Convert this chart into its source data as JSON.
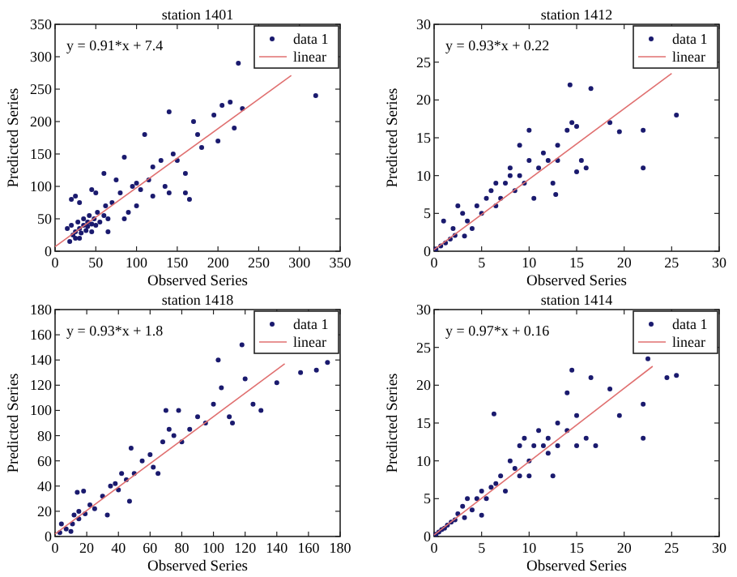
{
  "chart_data": [
    {
      "type": "scatter",
      "title": "station 1401",
      "xlabel": "Observed Series",
      "ylabel": "Predicted Series",
      "xlim": [
        0,
        350
      ],
      "ylim": [
        0,
        350
      ],
      "xticks": [
        0,
        50,
        100,
        150,
        200,
        250,
        300,
        350
      ],
      "yticks": [
        0,
        50,
        100,
        150,
        200,
        250,
        300,
        350
      ],
      "legend": "top right",
      "annotations": [
        "y = 0.91*x + 7.4"
      ],
      "series": [
        {
          "name": "data 1",
          "type": "scatter",
          "marker": "circle",
          "color": "#1a1a6e",
          "x": [
            15,
            20,
            22,
            25,
            28,
            30,
            32,
            35,
            35,
            38,
            40,
            40,
            42,
            45,
            45,
            48,
            50,
            52,
            55,
            30,
            25,
            18,
            60,
            62,
            65,
            70,
            20,
            25,
            30,
            45,
            50,
            60,
            65,
            75,
            80,
            85,
            90,
            95,
            100,
            105,
            110,
            115,
            120,
            130,
            135,
            140,
            140,
            145,
            150,
            160,
            160,
            165,
            170,
            175,
            180,
            195,
            200,
            205,
            215,
            220,
            225,
            230,
            320,
            100,
            85,
            120
          ],
          "values": [
            35,
            40,
            25,
            30,
            45,
            35,
            28,
            40,
            50,
            32,
            45,
            38,
            55,
            42,
            30,
            50,
            40,
            60,
            45,
            20,
            20,
            15,
            55,
            70,
            50,
            75,
            80,
            85,
            75,
            95,
            90,
            120,
            30,
            110,
            90,
            145,
            60,
            100,
            105,
            95,
            180,
            110,
            85,
            140,
            100,
            215,
            90,
            150,
            140,
            120,
            90,
            80,
            200,
            180,
            160,
            210,
            170,
            225,
            230,
            190,
            290,
            220,
            240,
            70,
            50,
            130
          ]
        },
        {
          "name": "linear",
          "type": "line",
          "marker": "none",
          "color": "#e07070",
          "x": [
            0,
            290
          ],
          "values": [
            7,
            271
          ]
        }
      ]
    },
    {
      "type": "scatter",
      "title": "station 1412",
      "xlabel": "Observed Series",
      "ylabel": "Predicted Series",
      "xlim": [
        0,
        30
      ],
      "ylim": [
        0,
        30
      ],
      "xticks": [
        0,
        5,
        10,
        15,
        20,
        25,
        30
      ],
      "yticks": [
        0,
        5,
        10,
        15,
        20,
        25,
        30
      ],
      "legend": "top right",
      "annotations": [
        "y = 0.93*x + 0.22"
      ],
      "series": [
        {
          "name": "data 1",
          "type": "scatter",
          "marker": "circle",
          "color": "#1a1a6e",
          "x": [
            0.2,
            0.7,
            1.2,
            1.7,
            2.2,
            1,
            2,
            2.5,
            3,
            3.5,
            3.2,
            4,
            4.5,
            5,
            5.5,
            6,
            6.5,
            6.5,
            7,
            7.5,
            8,
            8,
            8.5,
            9,
            9,
            9.5,
            10,
            10,
            10.5,
            11,
            11.5,
            12,
            12.5,
            12.8,
            13,
            13,
            14,
            14.3,
            14.5,
            15,
            15,
            15.5,
            16.5,
            16,
            18.5,
            19.5,
            22,
            22,
            25.5
          ],
          "values": [
            0.3,
            0.7,
            1.1,
            1.6,
            2.1,
            4,
            3,
            6,
            5,
            4,
            2,
            3,
            6,
            5,
            7,
            8,
            6,
            9,
            7,
            9,
            10,
            11,
            8,
            10,
            14,
            9,
            12,
            16,
            7,
            11,
            13,
            12,
            9,
            7.5,
            12,
            14,
            16,
            22,
            17,
            10.5,
            16.5,
            12,
            21.5,
            11,
            17,
            15.8,
            11,
            16,
            18
          ]
        },
        {
          "name": "linear",
          "type": "line",
          "marker": "none",
          "color": "#e07070",
          "x": [
            0,
            25
          ],
          "values": [
            0.2,
            23.5
          ]
        }
      ]
    },
    {
      "type": "scatter",
      "title": "station 1418",
      "xlabel": "Observed Series",
      "ylabel": "Predicted Series",
      "xlim": [
        0,
        180
      ],
      "ylim": [
        0,
        180
      ],
      "xticks": [
        0,
        20,
        40,
        60,
        80,
        100,
        120,
        140,
        160,
        180
      ],
      "yticks": [
        0,
        20,
        40,
        60,
        80,
        100,
        120,
        140,
        160,
        180
      ],
      "legend": "top right",
      "annotations": [
        "y = 0.93*x + 1.8"
      ],
      "series": [
        {
          "name": "data 1",
          "type": "scatter",
          "marker": "circle",
          "color": "#1a1a6e",
          "x": [
            3,
            7,
            11,
            15,
            19,
            4,
            12,
            10,
            14,
            18,
            15,
            22,
            25,
            30,
            33,
            35,
            38,
            40,
            42,
            45,
            47,
            48,
            50,
            55,
            60,
            62,
            65,
            68,
            70,
            72,
            75,
            78,
            80,
            85,
            90,
            95,
            100,
            103,
            105,
            110,
            112,
            118,
            120,
            125,
            130,
            140,
            155,
            165,
            172
          ],
          "values": [
            3,
            6,
            10,
            14,
            18,
            10,
            17,
            4,
            35,
            36,
            20,
            25,
            22,
            32,
            17,
            40,
            42,
            37,
            50,
            45,
            28,
            70,
            50,
            60,
            65,
            55,
            50,
            75,
            100,
            85,
            80,
            100,
            75,
            85,
            95,
            90,
            105,
            140,
            118,
            95,
            90,
            152,
            125,
            105,
            100,
            122,
            130,
            132,
            138
          ]
        },
        {
          "name": "linear",
          "type": "line",
          "marker": "none",
          "color": "#e07070",
          "x": [
            0,
            145
          ],
          "values": [
            2,
            137
          ]
        }
      ]
    },
    {
      "type": "scatter",
      "title": "station 1414",
      "xlabel": "Observed Series",
      "ylabel": "Predicted Series",
      "xlim": [
        0,
        30
      ],
      "ylim": [
        0,
        30
      ],
      "xticks": [
        0,
        5,
        10,
        15,
        20,
        25,
        30
      ],
      "yticks": [
        0,
        5,
        10,
        15,
        20,
        25,
        30
      ],
      "legend": "top right",
      "annotations": [
        "y = 0.97*x + 0.16"
      ],
      "series": [
        {
          "name": "data 1",
          "type": "scatter",
          "marker": "circle",
          "color": "#1a1a6e",
          "x": [
            0.2,
            0.5,
            0.8,
            1.1,
            1.4,
            1.8,
            2.2,
            2.5,
            3,
            3.5,
            3.2,
            4,
            4.5,
            5,
            5,
            5.5,
            6,
            6.3,
            6.5,
            7,
            7.5,
            8,
            8.5,
            9,
            9,
            9.5,
            10,
            10,
            10.5,
            11,
            11.5,
            12,
            12,
            12.5,
            13,
            13,
            14,
            14,
            14.5,
            15,
            15,
            16,
            16.5,
            17,
            18.5,
            19.5,
            22,
            22,
            22.5,
            24.5,
            25.5
          ],
          "values": [
            0.3,
            0.6,
            0.9,
            1.1,
            1.5,
            1.9,
            2.2,
            3,
            4,
            5,
            2.5,
            3.5,
            5,
            2.8,
            6,
            5,
            6.5,
            16.2,
            7,
            8,
            6,
            10,
            9,
            12,
            8,
            13,
            10,
            8,
            12,
            14,
            12,
            13,
            11,
            8,
            12,
            15,
            14,
            19,
            22,
            16,
            12,
            13,
            21,
            12,
            19.5,
            16,
            13,
            17.5,
            23.5,
            21,
            21.3
          ]
        },
        {
          "name": "linear",
          "type": "line",
          "marker": "none",
          "color": "#e07070",
          "x": [
            0,
            23
          ],
          "values": [
            0.2,
            22.5
          ]
        }
      ]
    }
  ]
}
